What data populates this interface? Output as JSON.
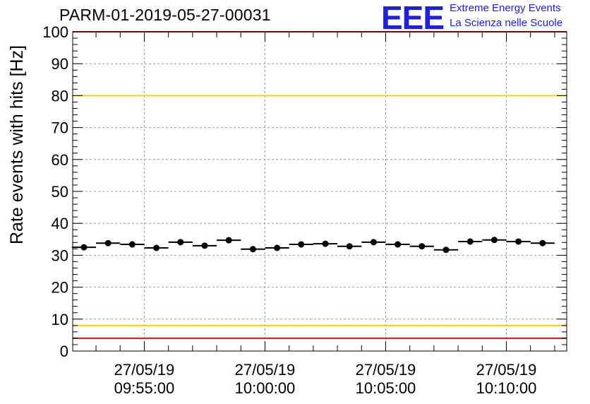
{
  "header": {
    "run_title": "PARM-01-2019-05-27-00031",
    "logo_text": "EEE",
    "org_line1": "Extreme Energy Events",
    "org_line2": "La Scienza nelle Scuole"
  },
  "colors": {
    "logo": "#1f1fe0",
    "threshold_red": "#ff0000",
    "threshold_yellow": "#ffcc00",
    "grid": "#9a9a9a",
    "points": "#000000"
  },
  "chart_data": {
    "type": "scatter",
    "title": "PARM-01-2019-05-27-00031",
    "ylabel": "Rate events with hits [Hz]",
    "xlabel": "",
    "ylim": [
      0,
      100
    ],
    "yticks": [
      0,
      10,
      20,
      30,
      40,
      50,
      60,
      70,
      80,
      90,
      100
    ],
    "xlim": [
      "2019-05-27 09:52:02",
      "2019-05-27 10:12:30"
    ],
    "xticks": [
      {
        "time": "2019-05-27 09:55:00",
        "date_label": "27/05/19",
        "time_label": "09:55:00"
      },
      {
        "time": "2019-05-27 10:00:00",
        "date_label": "27/05/19",
        "time_label": "10:00:00"
      },
      {
        "time": "2019-05-27 10:05:00",
        "date_label": "27/05/19",
        "time_label": "10:05:00"
      },
      {
        "time": "2019-05-27 10:10:00",
        "date_label": "27/05/19",
        "time_label": "10:10:00"
      }
    ],
    "grid": true,
    "bin_width_seconds": 60,
    "series": [
      {
        "x": [
          "09:52:30",
          "09:53:30",
          "09:54:30",
          "09:55:30",
          "09:56:30",
          "09:57:30",
          "09:58:30",
          "09:59:30",
          "10:00:30",
          "10:01:30",
          "10:02:30",
          "10:03:30",
          "10:04:30",
          "10:05:30",
          "10:06:30",
          "10:07:30",
          "10:08:30",
          "10:09:30",
          "10:10:30",
          "10:11:30"
        ],
        "values": [
          32.5,
          33.8,
          33.4,
          32.3,
          34.1,
          33.0,
          34.7,
          31.9,
          32.3,
          33.4,
          33.6,
          32.8,
          34.1,
          33.4,
          32.8,
          31.7,
          34.3,
          34.8,
          34.3,
          33.8
        ]
      }
    ],
    "reference_lines": [
      {
        "y": 100,
        "color": "#ff0000"
      },
      {
        "y": 80,
        "color": "#ffcc00"
      },
      {
        "y": 8,
        "color": "#ffcc00"
      },
      {
        "y": 4,
        "color": "#ff0000"
      }
    ]
  }
}
